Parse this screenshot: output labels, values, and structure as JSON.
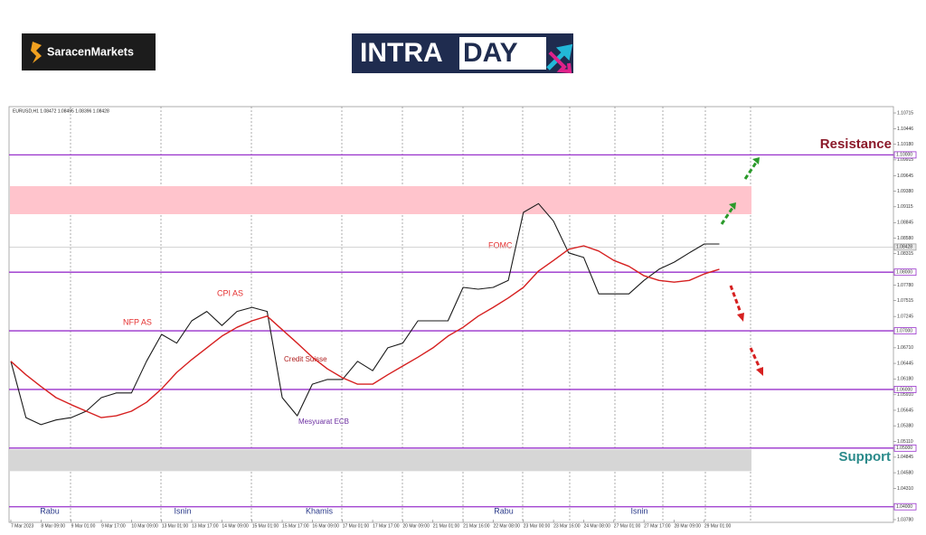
{
  "header": {
    "logo_left": "SaracenMarkets",
    "logo_right_a": "INTRA",
    "logo_right_b": "DAY"
  },
  "chart_data": {
    "type": "line",
    "symbol_info": "EURUSD,H1 1.08472 1.08495 1.08396 1.08428",
    "categories": [
      "7 Mar 2023",
      null,
      "8 Mar 09:00",
      null,
      "9 Mar 01:00",
      null,
      "9 Mar 17:00",
      null,
      "10 Mar 09:00",
      null,
      "13 Mar 01:00",
      null,
      "13 Mar 17:00",
      null,
      "14 Mar 09:00",
      null,
      "15 Mar 01:00",
      null,
      "15 Mar 17:00",
      null,
      "16 Mar 09:00",
      null,
      "17 Mar 01:00",
      null,
      "17 Mar 17:00",
      null,
      "20 Mar 09:00",
      null,
      "21 Mar 01:00",
      null,
      "21 Mar 16:00",
      null,
      "22 Mar 08:00",
      null,
      "23 Mar 00:00",
      null,
      "23 Mar 16:00",
      null,
      "24 Mar 08:00",
      null,
      "27 Mar 01:00",
      null,
      "27 Mar 17:00",
      null,
      "28 Mar 09:00",
      null,
      "29 Mar 01:00",
      null
    ],
    "series": [
      {
        "color": "#1a1a1a",
        "values": [
          1.0648,
          1.0552,
          1.054,
          1.0548,
          1.0552,
          1.0563,
          1.0586,
          1.0594,
          1.0594,
          1.0648,
          1.0694,
          1.0679,
          1.0717,
          1.0733,
          1.0709,
          1.0733,
          1.074,
          1.0733,
          1.0586,
          1.0555,
          1.0609,
          1.0617,
          1.0617,
          1.0648,
          1.0632,
          1.0671,
          1.0679,
          1.0717,
          1.0717,
          1.0717,
          1.0774,
          1.0771,
          1.0774,
          1.0786,
          1.0902,
          1.0917,
          1.0887,
          1.0833,
          1.0825,
          1.0763,
          1.0763,
          1.0763,
          1.0786,
          1.0805,
          1.0817,
          1.0833,
          1.0848,
          1.0848
        ]
      },
      {
        "color": "#d62020",
        "values": [
          1.0648,
          1.0625,
          1.0605,
          1.0586,
          1.0574,
          1.0563,
          1.0552,
          1.0555,
          1.0563,
          1.0578,
          1.0601,
          1.0629,
          1.0651,
          1.0671,
          1.0691,
          1.0706,
          1.0717,
          1.0725,
          1.0702,
          1.0679,
          1.0655,
          1.0635,
          1.062,
          1.0609,
          1.0609,
          1.0625,
          1.064,
          1.0655,
          1.0671,
          1.0691,
          1.0706,
          1.0725,
          1.074,
          1.0756,
          1.0774,
          1.0802,
          1.082,
          1.0839,
          1.0845,
          1.0836,
          1.082,
          1.081,
          1.0794,
          1.0786,
          1.0783,
          1.0786,
          1.0797,
          1.0805
        ]
      }
    ],
    "ylim": [
      1.0378,
      1.10715
    ],
    "yticks": [
      1.10715,
      1.10446,
      {
        "value": 1.1018,
        "label": "1.10180"
      },
      1.09915,
      1.09645,
      {
        "value": 1.0938,
        "label": "1.09380"
      },
      1.09115,
      1.08845,
      {
        "value": 1.0858,
        "label": "1.08580"
      },
      1.08315,
      {
        "value": 1.0778,
        "label": "1.07780"
      },
      1.07515,
      1.07245,
      {
        "value": 1.0671,
        "label": "1.06710"
      },
      1.06445,
      {
        "value": 1.0618,
        "label": "1.06180"
      },
      {
        "value": 1.0591,
        "label": "1.05910"
      },
      1.05645,
      {
        "value": 1.0538,
        "label": "1.05380"
      },
      {
        "value": 1.0511,
        "label": "1.05110"
      },
      1.04845,
      {
        "value": 1.0458,
        "label": "1.04580"
      },
      {
        "value": 1.0431,
        "label": "1.04310"
      },
      {
        "value": 1.0378,
        "label": "1.03780"
      }
    ],
    "levels": [
      {
        "value": 1.1,
        "label": "1.10000"
      },
      {
        "value": 1.08,
        "label": "1.08000"
      },
      {
        "value": 1.07,
        "label": "1.07000"
      },
      {
        "value": 1.06,
        "label": "1.06000"
      },
      {
        "value": 1.05,
        "label": "1.05000"
      },
      {
        "value": 1.04,
        "label": "1.04000"
      }
    ],
    "level_color": "#9932cc",
    "current_price": 1.08428,
    "zones": [
      {
        "range": [
          1.08989,
          1.09467
        ],
        "color": "#ffc4cc"
      },
      {
        "range": [
          1.04607,
          1.04977
        ],
        "color": "#d6d6d6"
      }
    ],
    "annotations": [
      "NFP AS",
      "CPI AS",
      "Credit Suisse",
      "Mesyuarat ECB",
      "FOMC"
    ],
    "resistance_label": "Resistance",
    "support_label": "Support",
    "day_labels": [
      "Rabu",
      "Isnin",
      "Khamis",
      "Rabu",
      "Isnin"
    ]
  }
}
